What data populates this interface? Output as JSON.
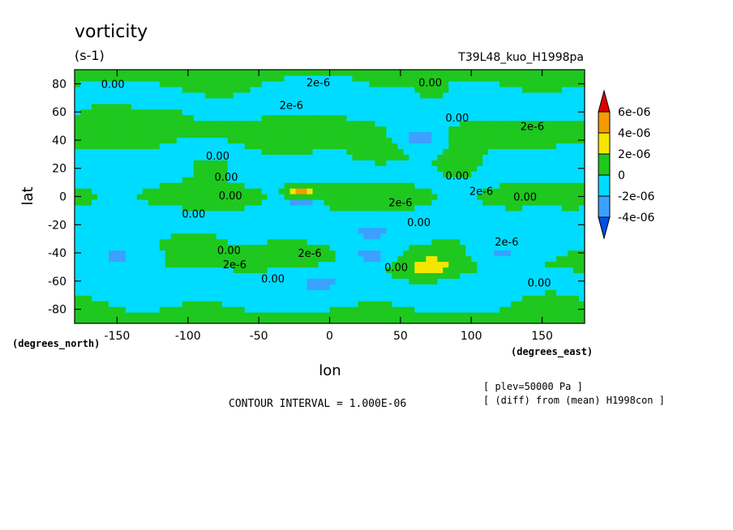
{
  "chart_data": {
    "type": "heatmap",
    "title": "vorticity",
    "units": "(s-1)",
    "experiment": "T39L48_kuo_H1998pa",
    "xlabel": "lon",
    "ylabel": "lat",
    "x_units": "(degrees_east)",
    "y_units": "(degrees_north)",
    "xlim": [
      -180,
      180
    ],
    "ylim": [
      -90,
      90
    ],
    "x_ticks": [
      -150,
      -100,
      -50,
      0,
      50,
      100,
      150
    ],
    "x_tick_labels": [
      "-150",
      "-100",
      "-50",
      "0",
      "50",
      "100",
      "150"
    ],
    "y_ticks": [
      80,
      60,
      40,
      20,
      0,
      -20,
      -40,
      -60,
      -80
    ],
    "y_tick_labels": [
      "80",
      "60",
      "40",
      "20",
      "0",
      "-20",
      "-40",
      "-60",
      "-80"
    ],
    "contour_interval_text": "CONTOUR INTERVAL = 1.000E-06",
    "info_lines": [
      "[ plev=50000 Pa ]",
      "[ (diff) from (mean) H1998con ]"
    ],
    "colorbar": {
      "labels": [
        "6e-06",
        "4e-06",
        "2e-06",
        "0",
        "-2e-06",
        "-4e-06"
      ],
      "levels": [
        6e-06,
        4e-06,
        2e-06,
        0,
        -2e-06,
        -4e-06
      ],
      "colors": [
        "#e00000",
        "#f59a00",
        "#f5e600",
        "#1ec81e",
        "#00dcff",
        "#3ca0ff",
        "#0050e6"
      ]
    },
    "contour_labels": [
      {
        "text": "0.00",
        "lon": -153,
        "lat": 80
      },
      {
        "text": "2e-6",
        "lon": -8,
        "lat": 81
      },
      {
        "text": "0.00",
        "lon": 71,
        "lat": 81
      },
      {
        "text": "2e-6",
        "lon": -27,
        "lat": 65
      },
      {
        "text": "0.00",
        "lon": 90,
        "lat": 56
      },
      {
        "text": "2e-6",
        "lon": 143,
        "lat": 50
      },
      {
        "text": "0.00",
        "lon": -79,
        "lat": 29
      },
      {
        "text": "0.00",
        "lon": 90,
        "lat": 15
      },
      {
        "text": "0.00",
        "lon": -73,
        "lat": 14
      },
      {
        "text": "2e-6",
        "lon": 107,
        "lat": 4
      },
      {
        "text": "0.00",
        "lon": -70,
        "lat": 1
      },
      {
        "text": "2e-6",
        "lon": 50,
        "lat": -4
      },
      {
        "text": "0.00",
        "lon": 138,
        "lat": 0
      },
      {
        "text": "0.00",
        "lon": -96,
        "lat": -12
      },
      {
        "text": "0.00",
        "lon": 63,
        "lat": -18
      },
      {
        "text": "2e-6",
        "lon": 125,
        "lat": -32
      },
      {
        "text": "0.00",
        "lon": -71,
        "lat": -38
      },
      {
        "text": "2e-6",
        "lon": -14,
        "lat": -40
      },
      {
        "text": "2e-6",
        "lon": -67,
        "lat": -48
      },
      {
        "text": "0.00",
        "lon": 47,
        "lat": -50
      },
      {
        "text": "0.00",
        "lon": -40,
        "lat": -58
      },
      {
        "text": "0.00",
        "lon": 148,
        "lat": -61
      }
    ]
  }
}
